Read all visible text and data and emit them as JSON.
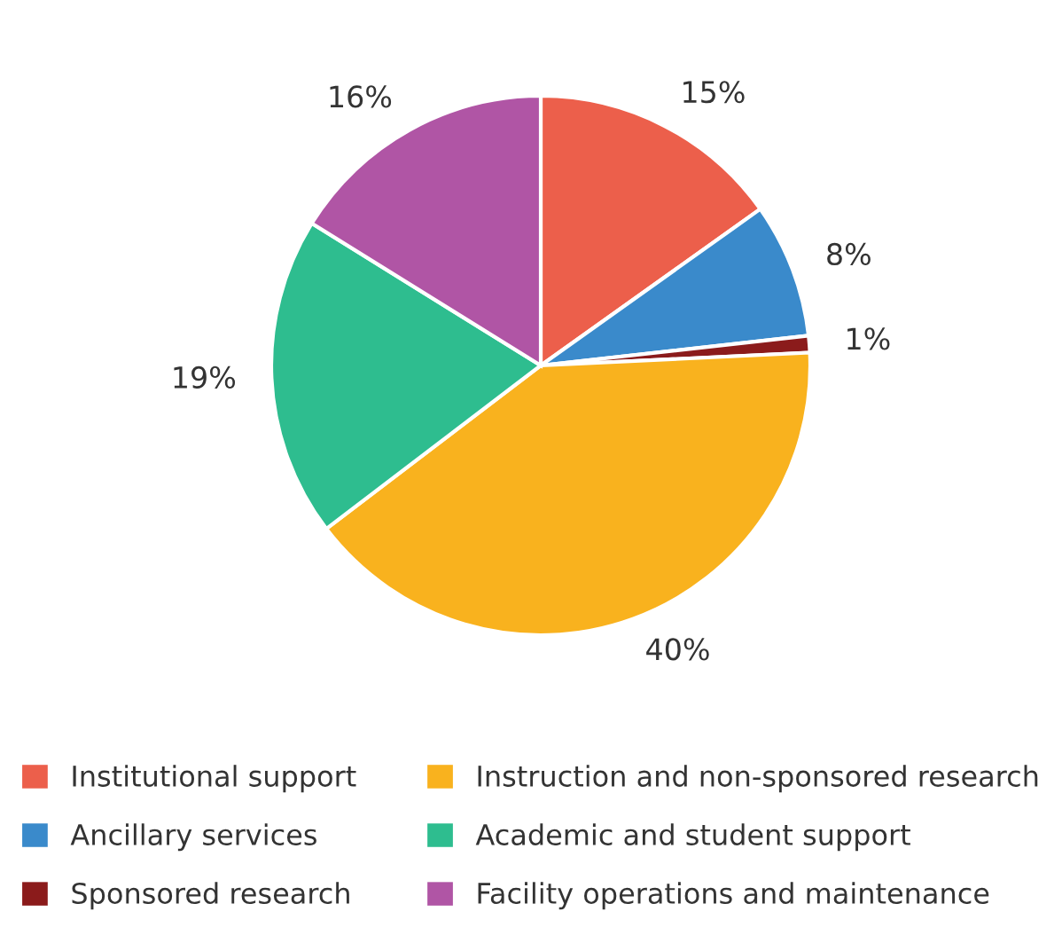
{
  "chart_data": {
    "type": "pie",
    "categories": [
      "Institutional support",
      "Ancillary services",
      "Sponsored research",
      "Instruction and non-sponsored research",
      "Academic and student support",
      "Facility operations and maintenance"
    ],
    "values": [
      15,
      8,
      1,
      40,
      19,
      16
    ],
    "value_labels": [
      "15%",
      "8%",
      "1%",
      "40%",
      "19%",
      "16%"
    ],
    "colors": [
      "#ec5f4b",
      "#3a8acb",
      "#8b1b1b",
      "#f9b21e",
      "#2ebd8f",
      "#b055a5"
    ],
    "legend": "bottom"
  }
}
